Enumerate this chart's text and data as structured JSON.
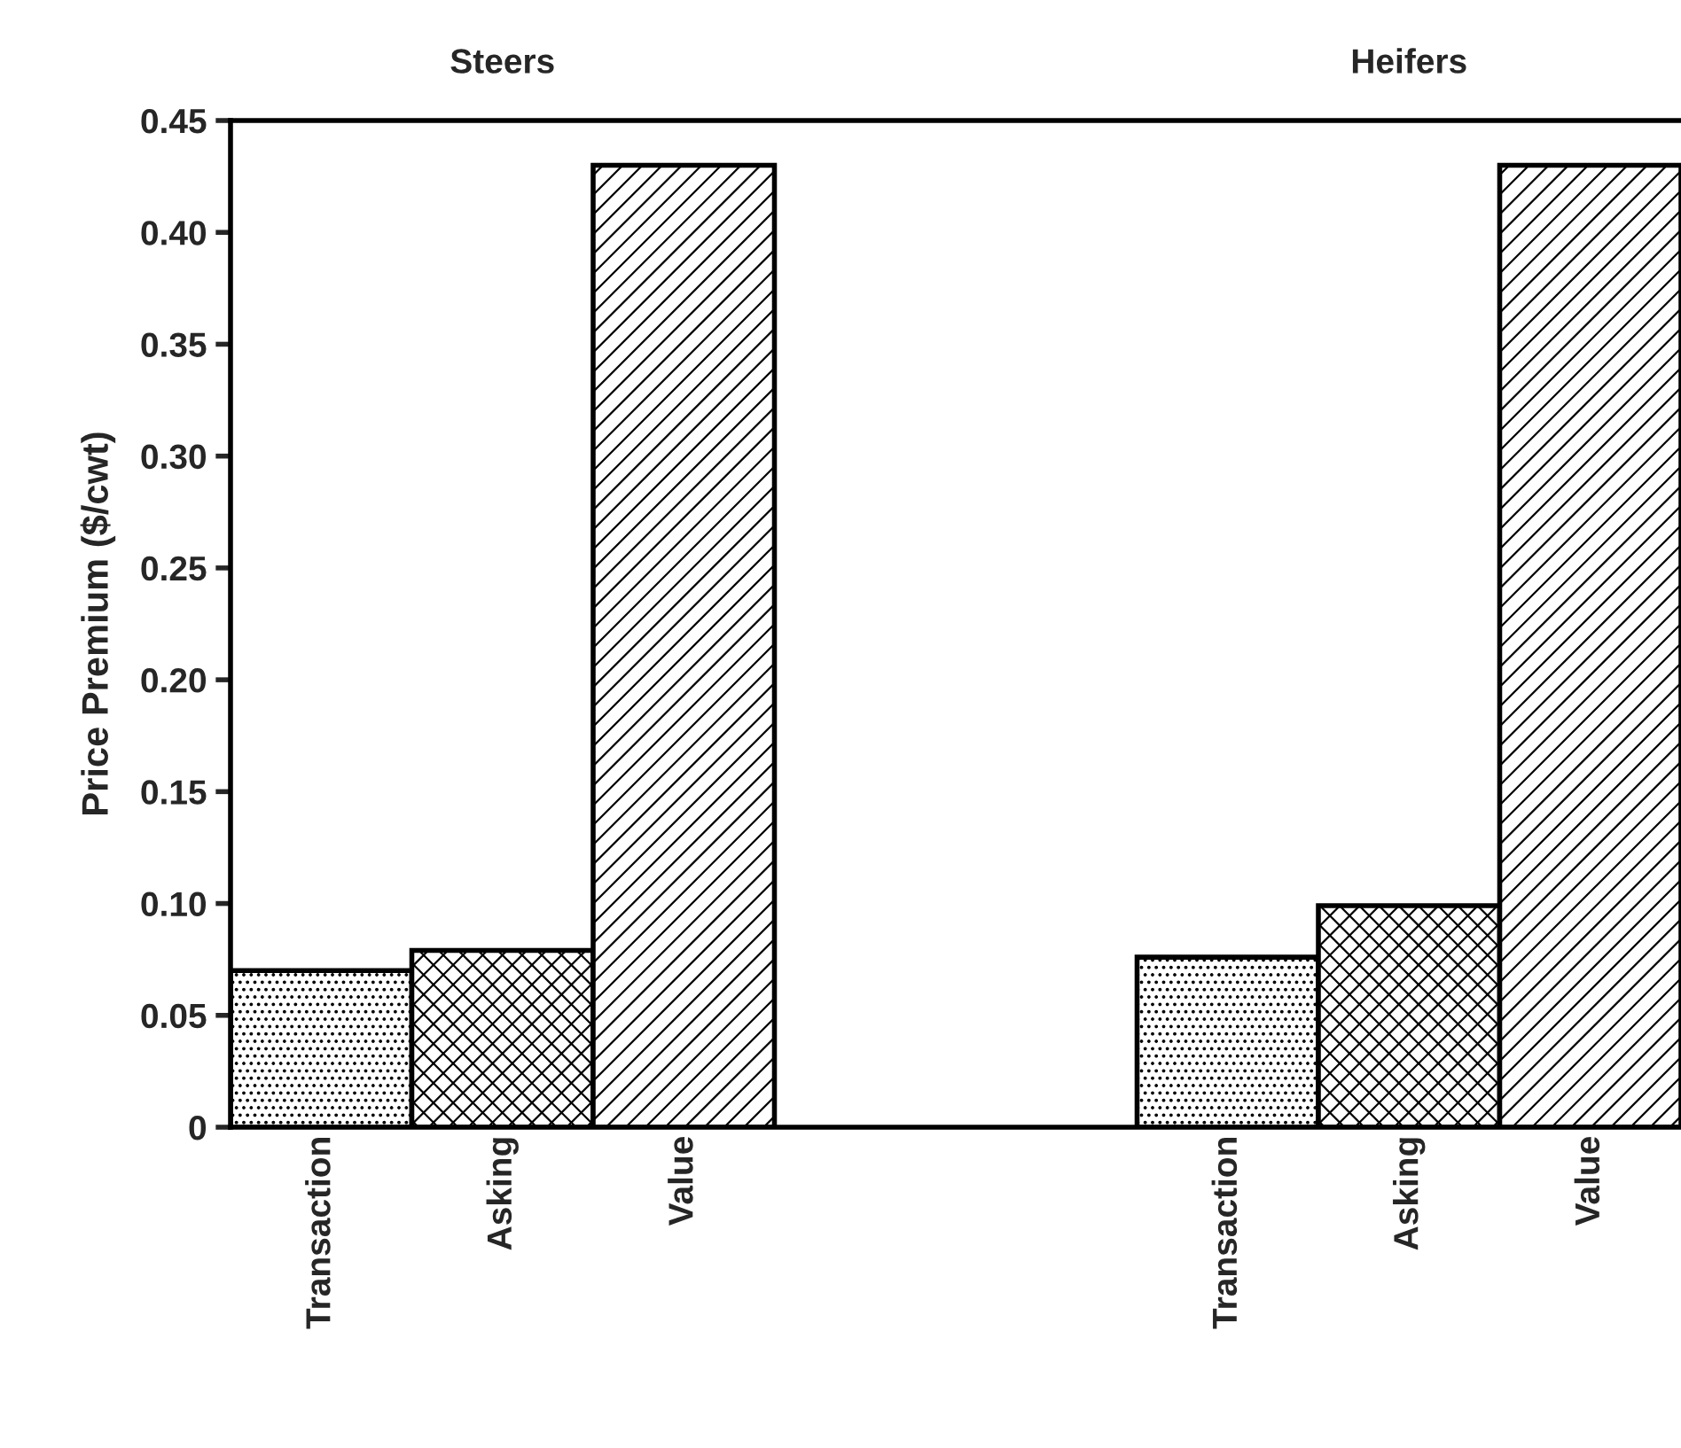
{
  "chart_data": {
    "type": "bar",
    "categories": [
      "Transaction",
      "Asking",
      "Value",
      null,
      null,
      "Transaction",
      "Asking",
      "Value"
    ],
    "values": [
      0.07,
      0.079,
      0.43,
      null,
      null,
      0.076,
      0.099,
      0.43
    ],
    "ylabel": "Price Premium ($/cwt)",
    "annotations": [
      "Steers",
      "Heifers"
    ],
    "ylim": [
      0,
      0.45
    ],
    "yticks": [
      0,
      {
        "value": 0.05,
        "label": "0.05"
      },
      {
        "value": 0.1,
        "label": "0.10"
      },
      {
        "value": 0.15,
        "label": "0.15"
      },
      {
        "value": 0.2,
        "label": "0.20"
      },
      {
        "value": 0.25,
        "label": "0.25"
      },
      {
        "value": 0.3,
        "label": "0.30"
      },
      {
        "value": 0.35,
        "label": "0.35"
      },
      {
        "value": 0.4,
        "label": "0.40"
      },
      {
        "value": 0.45,
        "label": "0.45"
      }
    ],
    "grid": false,
    "legend": false
  }
}
